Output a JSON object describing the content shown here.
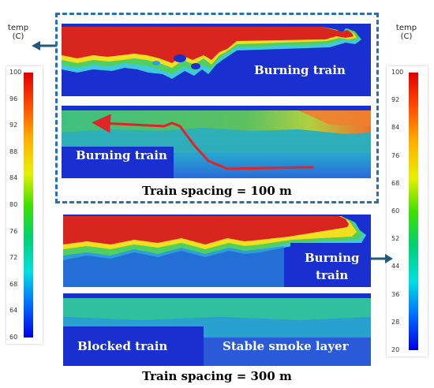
{
  "left_colorbar": {
    "title": "temp",
    "unit": "(C)",
    "ticks": [
      "100",
      "96",
      "92",
      "88",
      "84",
      "80",
      "76",
      "72",
      "68",
      "64",
      "60"
    ]
  },
  "right_colorbar": {
    "title": "temp",
    "unit": "(C)",
    "ticks": [
      "100",
      "92",
      "84",
      "76",
      "68",
      "60",
      "52",
      "44",
      "36",
      "28",
      "20"
    ]
  },
  "group_100": {
    "caption": "Train spacing = 100 m",
    "panel_top_label": "Burning train",
    "panel_bottom_label": "Burning train"
  },
  "group_300": {
    "caption": "Train spacing = 300 m",
    "panel_top_label_line1": "Burning",
    "panel_top_label_line2": "train",
    "panel_bottom_label_left": "Blocked train",
    "panel_bottom_label_right": "Stable smoke layer"
  },
  "colors": {
    "dashed_box": "#2a6fb0",
    "arrow": "#1f5a7a",
    "flow_arrow": "#e0242a",
    "tunnel_blue": "#1a2fd0",
    "smoke_red": "#d8261f"
  }
}
